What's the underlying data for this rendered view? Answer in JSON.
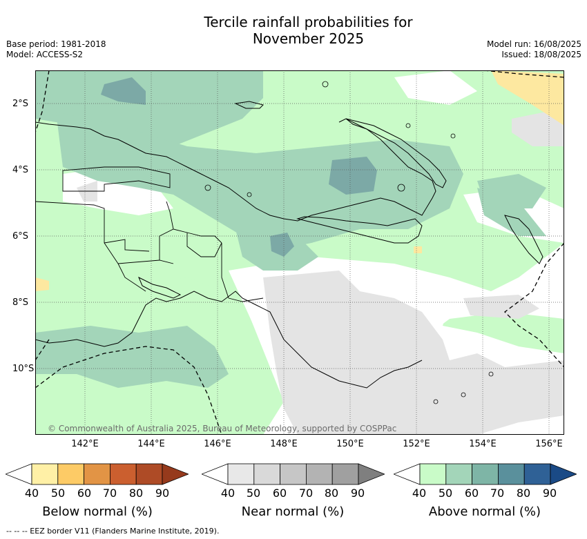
{
  "title_line1": "Tercile rainfall probabilities for",
  "title_line2": "November 2025",
  "base_period": "Base period: 1981-2018",
  "model": "Model: ACCESS-S2",
  "model_run": "Model run: 16/08/2025",
  "issued": "Issued: 18/08/2025",
  "lat_labels": [
    "2°S",
    "4°S",
    "6°S",
    "8°S",
    "10°S"
  ],
  "lon_labels": [
    "142°E",
    "144°E",
    "146°E",
    "148°E",
    "150°E",
    "152°E",
    "154°E",
    "156°E"
  ],
  "copyright": "© Commonwealth of Australia 2025, Bureau of Meteorology, supported by COSPPac",
  "colorbars": [
    {
      "title": "Below normal (%)",
      "ticks": [
        "40",
        "50",
        "60",
        "70",
        "80",
        "90"
      ],
      "colors": [
        "#ffffff",
        "#fff0a6",
        "#fdcb66",
        "#e29445",
        "#cb5f2f",
        "#ae4b26",
        "#963a1c"
      ]
    },
    {
      "title": "Near normal (%)",
      "ticks": [
        "40",
        "50",
        "60",
        "70",
        "80",
        "90"
      ],
      "colors": [
        "#ffffff",
        "#e8e8e8",
        "#d9d9d9",
        "#c6c6c6",
        "#b3b3b3",
        "#a0a0a0",
        "#7f7f7f"
      ]
    },
    {
      "title": "Above normal (%)",
      "ticks": [
        "40",
        "50",
        "60",
        "70",
        "80",
        "90"
      ],
      "colors": [
        "#ffffff",
        "#c9fbc8",
        "#a3d5b9",
        "#7eb5a6",
        "#5a909c",
        "#2f6196",
        "#1a4a86"
      ]
    }
  ],
  "footer": "--  --  -- EEZ border V11 (Flanders Marine Institute, 2019).",
  "colors": {
    "above_50": "#c9fbc8",
    "above_60": "#a3d5b9",
    "above_70": "#7ca9a6",
    "near_50": "#e4e4e4",
    "below_50": "#fde8a0"
  }
}
